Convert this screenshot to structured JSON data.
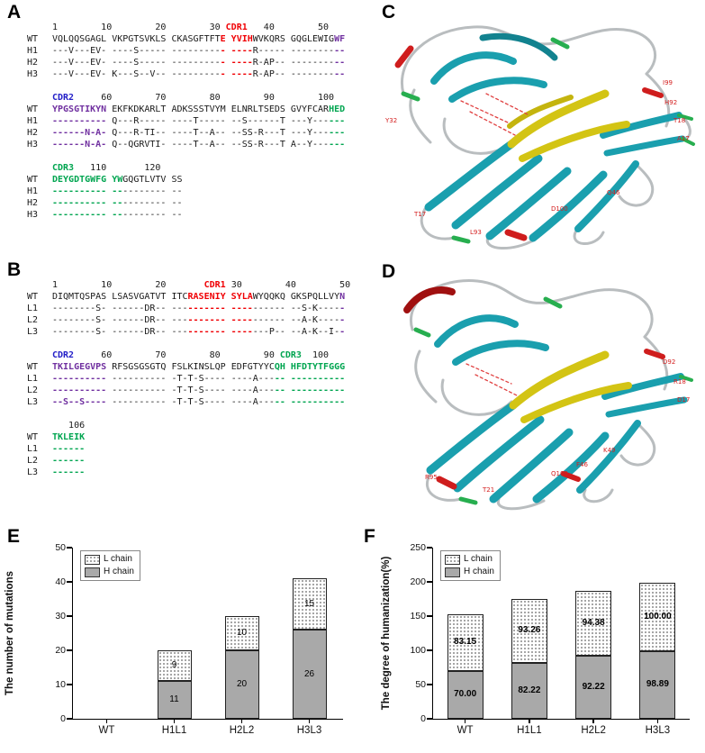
{
  "figure": {
    "panel_labels": {
      "A": "A",
      "B": "B",
      "C": "C",
      "D": "D",
      "E": "E",
      "F": "F"
    }
  },
  "alignments": {
    "A": {
      "blocks": [
        {
          "ruler": [
            [
              "1        10        20        30 ",
              "k"
            ],
            [
              "CDR1",
              "red"
            ],
            [
              "   40        50",
              "k"
            ]
          ],
          "rows": [
            {
              "name": "WT",
              "segs": [
                [
                  "VQLQQSGAGL VKPGTSVKLS CKASGFTFT",
                  "k"
                ],
                [
                  "E YVIH",
                  "red"
                ],
                [
                  "WVKQRS GQGLEWIG",
                  "k"
                ],
                [
                  "WF",
                  "purple"
                ]
              ]
            },
            {
              "name": "H1",
              "segs": [
                [
                  "---V---EV- ----S----- ---------",
                  "k"
                ],
                [
                  "- ----",
                  "red"
                ],
                [
                  "R----- --------",
                  "k"
                ],
                [
                  "--",
                  "purple"
                ]
              ]
            },
            {
              "name": "H2",
              "segs": [
                [
                  "---V---EV- ----S----- ---------",
                  "k"
                ],
                [
                  "- ----",
                  "red"
                ],
                [
                  "R-AP-- --------",
                  "k"
                ],
                [
                  "--",
                  "purple"
                ]
              ]
            },
            {
              "name": "H3",
              "segs": [
                [
                  "---V---EV- K---S--V-- ---------",
                  "k"
                ],
                [
                  "- ----",
                  "red"
                ],
                [
                  "R-AP-- --------",
                  "k"
                ],
                [
                  "--",
                  "purple"
                ]
              ]
            }
          ]
        },
        {
          "ruler": [
            [
              "CDR2",
              "blue"
            ],
            [
              "     60        70        80        90        100",
              "k"
            ]
          ],
          "rows": [
            {
              "name": "WT",
              "segs": [
                [
                  "YPGSGTIKYN",
                  "purple"
                ],
                [
                  " EKFKDKARLT ADKSSSTVYM ELNRLTSEDS GVYFCAR",
                  "k"
                ],
                [
                  "HED",
                  "green"
                ]
              ]
            },
            {
              "name": "H1",
              "segs": [
                [
                  "----------",
                  "purple"
                ],
                [
                  " Q---R----- ----T----- --S------T ---Y---",
                  "k"
                ],
                [
                  "---",
                  "green"
                ]
              ]
            },
            {
              "name": "H2",
              "segs": [
                [
                  "------N-A-",
                  "purple"
                ],
                [
                  " Q---R-TI-- ----T--A-- --SS-R---T ---Y---",
                  "k"
                ],
                [
                  "---",
                  "green"
                ]
              ]
            },
            {
              "name": "H3",
              "segs": [
                [
                  "------N-A-",
                  "purple"
                ],
                [
                  " Q--QGRVTI- ----T--A-- --SS-R---T A--Y---",
                  "k"
                ],
                [
                  "---",
                  "green"
                ]
              ]
            }
          ]
        },
        {
          "ruler": [
            [
              "CDR3",
              "green"
            ],
            [
              "   110       120",
              "k"
            ]
          ],
          "rows": [
            {
              "name": "WT",
              "segs": [
                [
                  "DEYGDTGWFG YW",
                  "green"
                ],
                [
                  "GQGTLVTV SS",
                  "k"
                ]
              ]
            },
            {
              "name": "H1",
              "segs": [
                [
                  "---------- --",
                  "green"
                ],
                [
                  "-------- --",
                  "k"
                ]
              ]
            },
            {
              "name": "H2",
              "segs": [
                [
                  "---------- --",
                  "green"
                ],
                [
                  "-------- --",
                  "k"
                ]
              ]
            },
            {
              "name": "H3",
              "segs": [
                [
                  "---------- --",
                  "green"
                ],
                [
                  "-------- --",
                  "k"
                ]
              ]
            }
          ]
        }
      ]
    },
    "B": {
      "blocks": [
        {
          "ruler": [
            [
              "1        10        20       ",
              "k"
            ],
            [
              "CDR1",
              "red"
            ],
            [
              " 30        40        50",
              "k"
            ]
          ],
          "rows": [
            {
              "name": "WT",
              "segs": [
                [
                  "DIQMTQSPAS LSASVGATVT ITC",
                  "k"
                ],
                [
                  "RASENIY SYLA",
                  "red"
                ],
                [
                  "WYQQKQ GKSPQLLVY",
                  "k"
                ],
                [
                  "N",
                  "purple"
                ]
              ]
            },
            {
              "name": "L1",
              "segs": [
                [
                  "--------S- ------DR-- ---",
                  "k"
                ],
                [
                  "------- ----",
                  "red"
                ],
                [
                  "------ --S-K----",
                  "k"
                ],
                [
                  "-",
                  "purple"
                ]
              ]
            },
            {
              "name": "L2",
              "segs": [
                [
                  "--------S- ------DR-- ---",
                  "k"
                ],
                [
                  "------- ----",
                  "red"
                ],
                [
                  "------ --A-K----",
                  "k"
                ],
                [
                  "-",
                  "purple"
                ]
              ]
            },
            {
              "name": "L3",
              "segs": [
                [
                  "--------S- ------DR-- ---",
                  "k"
                ],
                [
                  "------- ----",
                  "red"
                ],
                [
                  "---P-- --A-K--I-",
                  "k"
                ],
                [
                  "-",
                  "purple"
                ]
              ]
            }
          ]
        },
        {
          "ruler": [
            [
              "CDR2",
              "blue"
            ],
            [
              "     60        70        80        90 ",
              "k"
            ],
            [
              "CDR3",
              "green"
            ],
            [
              "  100",
              "k"
            ]
          ],
          "rows": [
            {
              "name": "WT",
              "segs": [
                [
                  "TKILGEGVPS",
                  "purple"
                ],
                [
                  " RFSGSGSGTQ FSLKINSLQP EDFGTYYC",
                  "k"
                ],
                [
                  "QH HFDTYTFGGG",
                  "green"
                ]
              ]
            },
            {
              "name": "L1",
              "segs": [
                [
                  "----------",
                  "purple"
                ],
                [
                  " ---------- -T-T-S---- ----A---",
                  "k"
                ],
                [
                  "-- ----------",
                  "green"
                ]
              ]
            },
            {
              "name": "L2",
              "segs": [
                [
                  "----------",
                  "purple"
                ],
                [
                  " ---------- -T-T-S---- ----A---",
                  "k"
                ],
                [
                  "-- ----------",
                  "green"
                ]
              ]
            },
            {
              "name": "L3",
              "segs": [
                [
                  "--S--S----",
                  "purple"
                ],
                [
                  " ---------- -T-T-S---- ----A---",
                  "k"
                ],
                [
                  "-- ----------",
                  "green"
                ]
              ]
            }
          ]
        },
        {
          "ruler": [
            [
              "   106",
              "k"
            ]
          ],
          "rows": [
            {
              "name": "WT",
              "segs": [
                [
                  "TKLEIK",
                  "green"
                ]
              ]
            },
            {
              "name": "L1",
              "segs": [
                [
                  "------",
                  "green"
                ]
              ]
            },
            {
              "name": "L2",
              "segs": [
                [
                  "------",
                  "green"
                ]
              ]
            },
            {
              "name": "L3",
              "segs": [
                [
                  "------",
                  "green"
                ]
              ]
            }
          ]
        }
      ]
    }
  },
  "structures": {
    "C": {
      "residue_labels": [
        "Y32",
        "I99",
        "H92",
        "T18",
        "A17",
        "Q46",
        "D100",
        "T17",
        "L93"
      ],
      "colors": {
        "strand": "#1a9fae",
        "linker": "#d3c414",
        "loop": "#b9bdbf",
        "helix": "#cf1d1d",
        "turn": "#27ae4f",
        "label": "#d42020"
      }
    },
    "D": {
      "residue_labels": [
        "D92",
        "R18",
        "D17",
        "K49",
        "F46",
        "T21",
        "R95",
        "Q100"
      ],
      "colors": {
        "strand": "#1a9fae",
        "linker": "#d3c414",
        "loop": "#b9bdbf",
        "helix": "#cf1d1d",
        "turn": "#27ae4f",
        "label": "#d42020"
      }
    }
  },
  "chart_data": [
    {
      "id": "E",
      "type": "bar",
      "subtype": "stacked",
      "categories": [
        "WT",
        "H1L1",
        "H2L2",
        "H3L3"
      ],
      "series": [
        {
          "name": "H chain",
          "style": "gray",
          "values": [
            0,
            11,
            20,
            26
          ],
          "labels": [
            "",
            "11",
            "20",
            "26"
          ]
        },
        {
          "name": "L chain",
          "style": "dots",
          "values": [
            0,
            9,
            10,
            15
          ],
          "labels": [
            "",
            "9",
            "10",
            "15"
          ]
        }
      ],
      "title": "",
      "xlabel": "",
      "ylabel": "The number of mutations",
      "ylim": [
        0,
        50
      ],
      "yticks": [
        0,
        10,
        20,
        30,
        40,
        50
      ],
      "legend_position": "top-left",
      "label_bold": false
    },
    {
      "id": "F",
      "type": "bar",
      "subtype": "stacked",
      "categories": [
        "WT",
        "H1L1",
        "H2L2",
        "H3L3"
      ],
      "series": [
        {
          "name": "H chain",
          "style": "gray",
          "values": [
            70.0,
            82.22,
            92.22,
            98.89
          ],
          "labels": [
            "70.00",
            "82.22",
            "92.22",
            "98.89"
          ]
        },
        {
          "name": "L chain",
          "style": "dots",
          "values": [
            83.15,
            93.26,
            94.38,
            100.0
          ],
          "labels": [
            "83.15",
            "93.26",
            "94.38",
            "100.00"
          ]
        }
      ],
      "title": "",
      "xlabel": "",
      "ylabel": "The degree of humanization(%)",
      "ylim": [
        0,
        250
      ],
      "yticks": [
        0,
        50,
        100,
        150,
        200,
        250
      ],
      "legend_position": "top-left",
      "label_bold": true
    }
  ]
}
